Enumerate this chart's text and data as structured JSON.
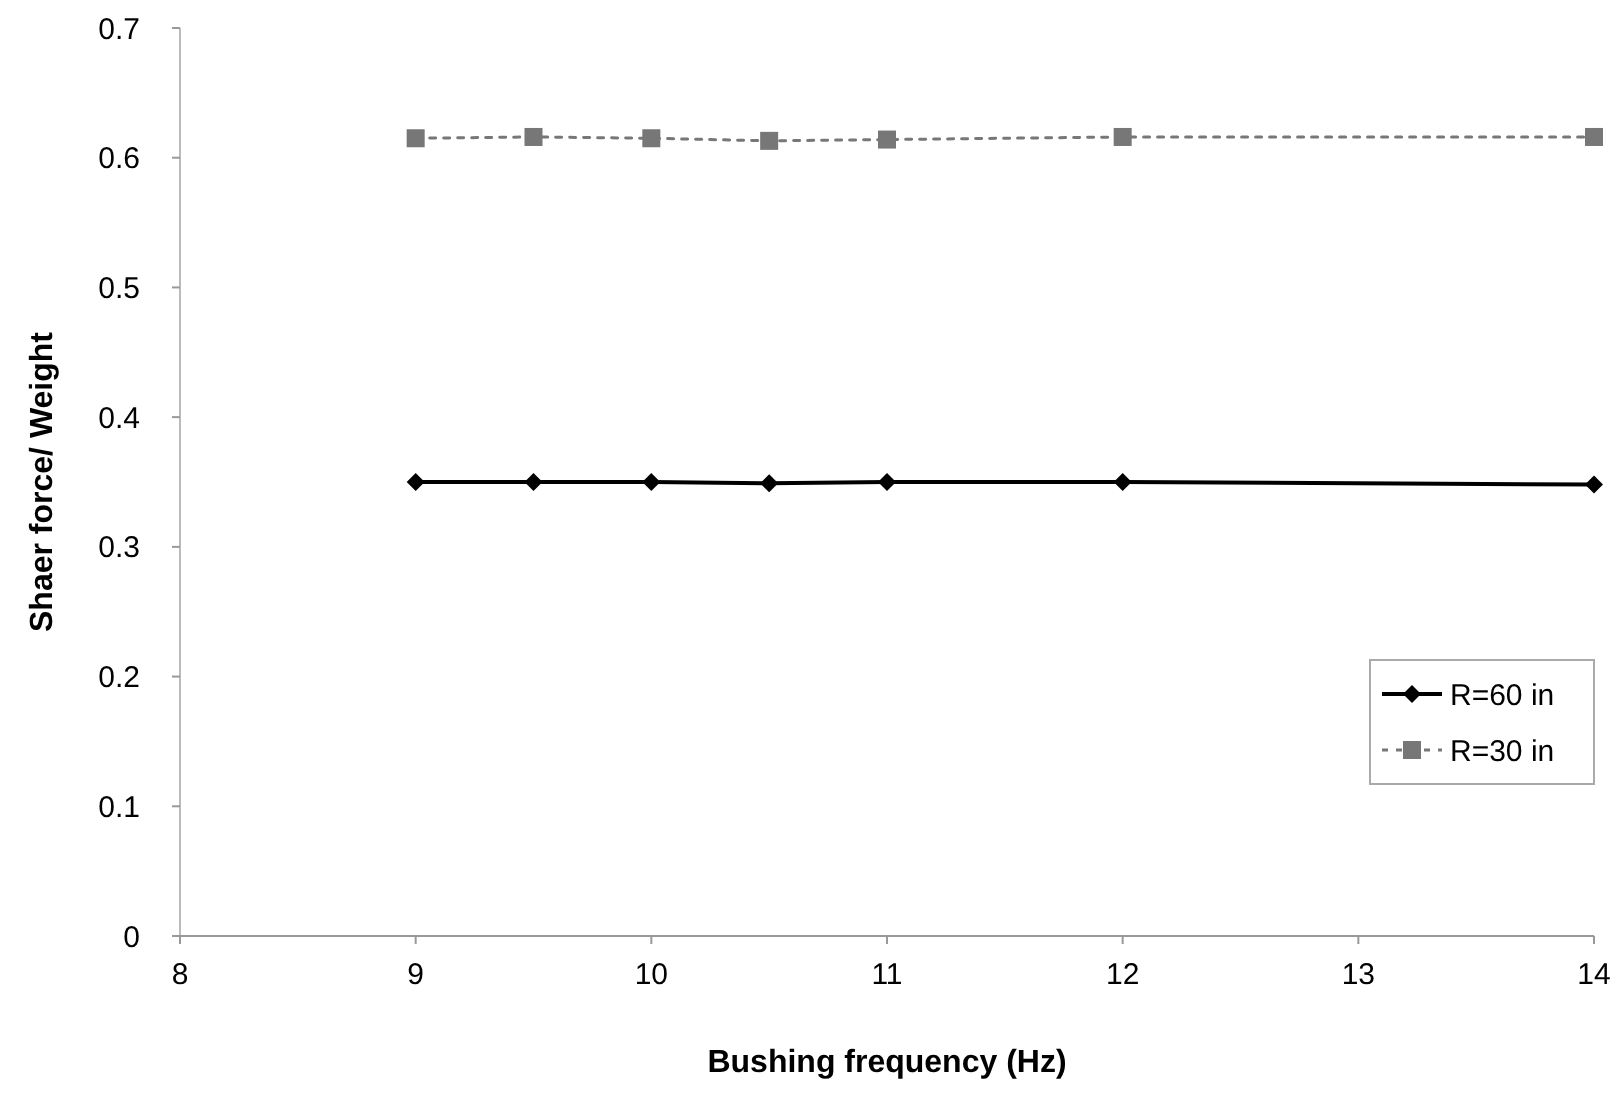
{
  "chart_data": {
    "type": "line",
    "xlabel": "Bushing frequency (Hz)",
    "ylabel": "Shaer force/ Weight",
    "xlim": [
      8,
      14
    ],
    "xticks": [
      8,
      9,
      10,
      11,
      12,
      13,
      14
    ],
    "ylim": [
      0,
      0.7
    ],
    "yticks": [
      0,
      0.1,
      0.2,
      0.3,
      0.4,
      0.5,
      0.6,
      0.7
    ],
    "x": [
      9,
      9.5,
      10,
      10.5,
      11,
      12,
      14
    ],
    "series": [
      {
        "name": "R=60 in",
        "color": "#000000",
        "marker": "diamond",
        "line_style": "solid",
        "values": [
          0.35,
          0.35,
          0.35,
          0.349,
          0.35,
          0.35,
          0.348
        ]
      },
      {
        "name": "R=30 in",
        "color": "#777777",
        "marker": "square",
        "line_style": "dotted",
        "values": [
          0.615,
          0.616,
          0.615,
          0.613,
          0.614,
          0.616,
          0.616
        ]
      }
    ],
    "grid": false,
    "legend": "right"
  }
}
